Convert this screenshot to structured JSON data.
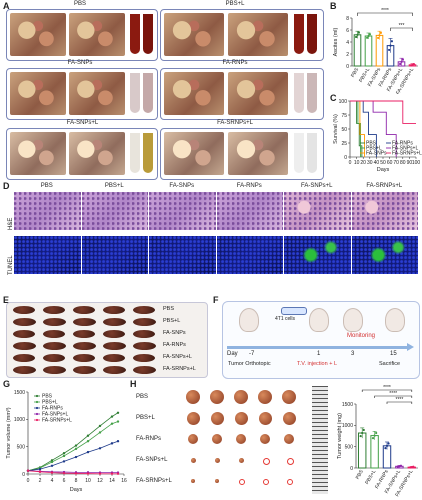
{
  "panels": {
    "A": "A",
    "B": "B",
    "C": "C",
    "D": "D",
    "E": "E",
    "F": "F",
    "G": "G",
    "H": "H"
  },
  "panelA": {
    "titles": [
      "PBS",
      "PBS+L",
      "FA-SNPs",
      "FA-RNPs",
      "FA-SNPs+L",
      "FA-SRNPs+L"
    ]
  },
  "panelD": {
    "columns": [
      "PBS",
      "PBS+L",
      "FA-SNPs",
      "FA-RNPs",
      "FA-SNPs+L",
      "FA-SRNPs+L"
    ],
    "rows": [
      "H&E",
      "TUNEL"
    ]
  },
  "panelE": {
    "rows": [
      "PBS",
      "PBS+L",
      "FA-SNPs",
      "FA-RNPs",
      "FA-SNPs+L",
      "FA-SRNPs+L"
    ]
  },
  "panelF": {
    "cells_label": "4T1 cells",
    "monitoring": "Monitoring",
    "day_label": "Day",
    "days": [
      "-7",
      "1",
      "3",
      "15"
    ],
    "events": [
      "Tumor Orthotopic",
      "T.V. injection + L",
      "Sacrifice"
    ]
  },
  "panelH": {
    "rows": [
      "PBS",
      "PBS+L",
      "FA-RNPs",
      "FA-SNPs+L",
      "FA-SRNPs+L"
    ]
  },
  "colors": {
    "PBS": "#2e7d32",
    "PBS+L": "#43a047",
    "FA-SNPs": "#ff9800",
    "FA-RNPs": "#1e3a8a",
    "FA-SNPs+L": "#8e24aa",
    "FA-SRNPs+L": "#e91e63",
    "sig": "#222222"
  },
  "chart_data": [
    {
      "id": "B",
      "type": "bar",
      "ylabel": "Ascites (ml)",
      "ylim": [
        0,
        8
      ],
      "yticks": [
        0,
        2,
        4,
        6,
        8
      ],
      "categories": [
        "PBS",
        "PBS+L",
        "FA-SNPs",
        "FA-RNPs",
        "FA-SNPs+L",
        "FA-SRNPs+L"
      ],
      "values": [
        5.2,
        5.0,
        5.1,
        3.4,
        0.7,
        0.2
      ],
      "errors": [
        0.6,
        0.5,
        0.7,
        1.2,
        0.6,
        0.2
      ],
      "significance": [
        "****",
        "***"
      ]
    },
    {
      "id": "C",
      "type": "line",
      "xlabel": "Days",
      "ylabel": "Survival (%)",
      "xlim": [
        0,
        100
      ],
      "ylim": [
        0,
        100
      ],
      "xticks": [
        0,
        10,
        20,
        30,
        40,
        50,
        60,
        70,
        80,
        90,
        100
      ],
      "yticks": [
        0,
        25,
        50,
        75,
        100
      ],
      "series": [
        {
          "name": "PBS",
          "points": [
            [
              0,
              100
            ],
            [
              10,
              100
            ],
            [
              10,
              60
            ],
            [
              14,
              60
            ],
            [
              14,
              20
            ],
            [
              18,
              20
            ],
            [
              18,
              0
            ]
          ]
        },
        {
          "name": "PBS+L",
          "points": [
            [
              0,
              100
            ],
            [
              12,
              100
            ],
            [
              12,
              60
            ],
            [
              16,
              60
            ],
            [
              16,
              0
            ]
          ]
        },
        {
          "name": "FA-SNPs",
          "points": [
            [
              0,
              100
            ],
            [
              15,
              100
            ],
            [
              15,
              40
            ],
            [
              22,
              40
            ],
            [
              22,
              0
            ]
          ]
        },
        {
          "name": "FA-RNPs",
          "points": [
            [
              0,
              100
            ],
            [
              20,
              100
            ],
            [
              20,
              80
            ],
            [
              28,
              80
            ],
            [
              28,
              40
            ],
            [
              40,
              40
            ],
            [
              40,
              0
            ]
          ]
        },
        {
          "name": "FA-SNPs+L",
          "points": [
            [
              0,
              100
            ],
            [
              35,
              100
            ],
            [
              35,
              80
            ],
            [
              55,
              80
            ],
            [
              55,
              40
            ],
            [
              70,
              40
            ],
            [
              70,
              0
            ]
          ]
        },
        {
          "name": "FA-SRNPs+L",
          "points": [
            [
              0,
              100
            ],
            [
              80,
              100
            ],
            [
              80,
              60
            ],
            [
              100,
              60
            ]
          ]
        }
      ]
    },
    {
      "id": "G",
      "type": "line",
      "xlabel": "Days",
      "ylabel": "Tumor volume (mm³)",
      "xlim": [
        0,
        16
      ],
      "ylim": [
        0,
        1500
      ],
      "xticks": [
        0,
        2,
        4,
        6,
        8,
        10,
        12,
        14,
        16
      ],
      "yticks": [
        0,
        500,
        1000,
        1500
      ],
      "series": [
        {
          "name": "PBS",
          "x": [
            0,
            2,
            4,
            6,
            8,
            10,
            12,
            14,
            15
          ],
          "y": [
            60,
            120,
            250,
            380,
            520,
            700,
            880,
            1050,
            1120
          ]
        },
        {
          "name": "PBS+L",
          "x": [
            0,
            2,
            4,
            6,
            8,
            10,
            12,
            14,
            15
          ],
          "y": [
            60,
            110,
            220,
            330,
            460,
            600,
            760,
            920,
            960
          ]
        },
        {
          "name": "FA-RNPs",
          "x": [
            0,
            2,
            4,
            6,
            8,
            10,
            12,
            14,
            15
          ],
          "y": [
            60,
            90,
            150,
            230,
            310,
            400,
            470,
            560,
            600
          ]
        },
        {
          "name": "FA-SNPs+L",
          "x": [
            0,
            2,
            4,
            6,
            8,
            10,
            12,
            14,
            15
          ],
          "y": [
            60,
            50,
            40,
            35,
            30,
            30,
            25,
            25,
            25
          ]
        },
        {
          "name": "FA-SRNPs+L",
          "x": [
            0,
            2,
            4,
            6,
            8,
            10,
            12,
            14,
            15
          ],
          "y": [
            60,
            40,
            25,
            15,
            10,
            8,
            5,
            5,
            5
          ]
        }
      ]
    },
    {
      "id": "H",
      "type": "bar",
      "ylabel": "Tumor weight (mg)",
      "ylim": [
        0,
        1500
      ],
      "yticks": [
        0,
        500,
        1000,
        1500
      ],
      "categories": [
        "PBS",
        "PBS+L",
        "FA-RNPs",
        "FA-SNPs+L",
        "FA-SRNPs+L"
      ],
      "values": [
        820,
        760,
        520,
        40,
        20
      ],
      "errors": [
        120,
        100,
        90,
        20,
        15
      ],
      "significance": [
        "****",
        "****",
        "****"
      ]
    }
  ]
}
